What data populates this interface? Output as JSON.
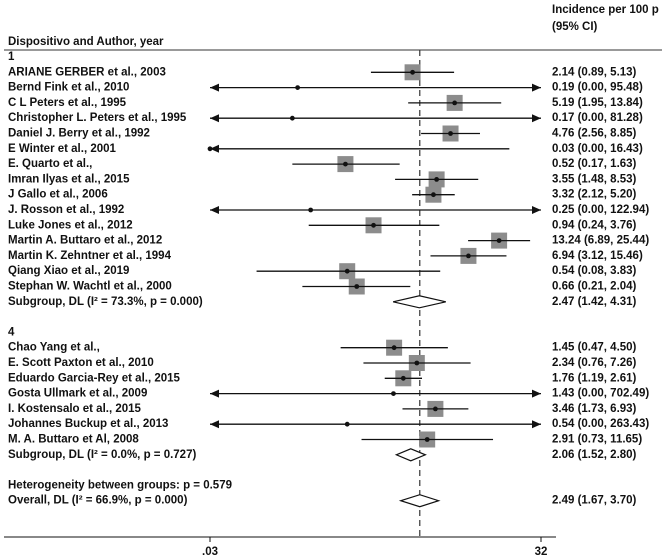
{
  "chart_data": {
    "type": "forest",
    "header_left": "Dispositivo and Author, year",
    "header_right": [
      "Incidence per 100 p",
      "(95% CI)"
    ],
    "log_scale": true,
    "xlim": [
      0.03,
      32
    ],
    "xticks": [
      {
        "value": 0.03,
        "label": ".03"
      },
      32
    ],
    "box_color": "#8c8c8c",
    "groups": [
      {
        "title": "1",
        "studies": [
          {
            "name": "ARIANE GERBER  et al., 2003",
            "estimate": 2.14,
            "lower": 0.89,
            "upper": 5.13,
            "label": "2.14 (0.89, 5.13)"
          },
          {
            "name": "Bernd Fink et al., 2010",
            "estimate": 0.19,
            "lower": 0.0,
            "upper": 95.48,
            "label": "0.19 (0.00, 95.48)"
          },
          {
            "name": "C L Peters et al., 1995",
            "estimate": 5.19,
            "lower": 1.95,
            "upper": 13.84,
            "label": "5.19 (1.95, 13.84)"
          },
          {
            "name": "Christopher L. Peters et al., 1995",
            "estimate": 0.17,
            "lower": 0.0,
            "upper": 81.28,
            "label": "0.17 (0.00, 81.28)"
          },
          {
            "name": "Daniel J. Berry et al., 1992",
            "estimate": 4.76,
            "lower": 2.56,
            "upper": 8.85,
            "label": "4.76 (2.56, 8.85)"
          },
          {
            "name": "E Winter et al., 2001",
            "estimate": 0.03,
            "lower": 0.0,
            "upper": 16.43,
            "label": "0.03 (0.00, 16.43)"
          },
          {
            "name": "E. Quarto et al.,",
            "estimate": 0.52,
            "lower": 0.17,
            "upper": 1.63,
            "label": "0.52 (0.17, 1.63)"
          },
          {
            "name": "Imran Ilyas et al., 2015",
            "estimate": 3.55,
            "lower": 1.48,
            "upper": 8.53,
            "label": "3.55 (1.48, 8.53)"
          },
          {
            "name": "J Gallo et al., 2006",
            "estimate": 3.32,
            "lower": 2.12,
            "upper": 5.2,
            "label": "3.32 (2.12, 5.20)"
          },
          {
            "name": "J. Rosson et al., 1992",
            "estimate": 0.25,
            "lower": 0.0,
            "upper": 122.94,
            "label": "0.25 (0.00, 122.94)"
          },
          {
            "name": "Luke Jones et al., 2012",
            "estimate": 0.94,
            "lower": 0.24,
            "upper": 3.76,
            "label": "0.94 (0.24, 3.76)"
          },
          {
            "name": "Martin A. Buttaro et al., 2012",
            "estimate": 13.24,
            "lower": 6.89,
            "upper": 25.44,
            "label": "13.24 (6.89, 25.44)"
          },
          {
            "name": "Martin K. Zehntner et al., 1994",
            "estimate": 6.94,
            "lower": 3.12,
            "upper": 15.46,
            "label": "6.94 (3.12, 15.46)"
          },
          {
            "name": "Qiang Xiao et al., 2019",
            "estimate": 0.54,
            "lower": 0.08,
            "upper": 3.83,
            "label": "0.54 (0.08, 3.83)"
          },
          {
            "name": "Stephan W. Wachtl et al., 2000",
            "estimate": 0.66,
            "lower": 0.21,
            "upper": 2.04,
            "label": "0.66 (0.21, 2.04)"
          }
        ],
        "subgroup": {
          "name": "Subgroup, DL (I² = 73.3%, p = 0.000)",
          "estimate": 2.47,
          "lower": 1.42,
          "upper": 4.31,
          "label": "2.47 (1.42, 4.31)"
        }
      },
      {
        "title": "4",
        "studies": [
          {
            "name": "Chao Yang et al.,",
            "estimate": 1.45,
            "lower": 0.47,
            "upper": 4.5,
            "label": "1.45 (0.47, 4.50)"
          },
          {
            "name": "E. Scott Paxton et al., 2010",
            "estimate": 2.34,
            "lower": 0.76,
            "upper": 7.26,
            "label": "2.34 (0.76, 7.26)"
          },
          {
            "name": "Eduardo Garcia-Rey et al., 2015",
            "estimate": 1.76,
            "lower": 1.19,
            "upper": 2.61,
            "label": "1.76 (1.19, 2.61)"
          },
          {
            "name": "Gosta Ullmark et al., 2009",
            "estimate": 1.43,
            "lower": 0.0,
            "upper": 702.49,
            "label": "1.43 (0.00, 702.49)"
          },
          {
            "name": "I. Kostensalo et al., 2015",
            "estimate": 3.46,
            "lower": 1.73,
            "upper": 6.93,
            "label": "3.46 (1.73, 6.93)"
          },
          {
            "name": "Johannes Buckup et al., 2013",
            "estimate": 0.54,
            "lower": 0.0,
            "upper": 263.43,
            "label": "0.54 (0.00, 263.43)"
          },
          {
            "name": "M. A. Buttaro et Al, 2008",
            "estimate": 2.91,
            "lower": 0.73,
            "upper": 11.65,
            "label": "2.91 (0.73, 11.65)"
          }
        ],
        "subgroup": {
          "name": "Subgroup, DL (I² = 0.0%, p = 0.727)",
          "estimate": 2.06,
          "lower": 1.52,
          "upper": 2.8,
          "label": "2.06 (1.52, 2.80)"
        }
      }
    ],
    "heterogeneity": "Heterogeneity between groups: p = 0.579",
    "overall": {
      "name": "Overall, DL (I² = 66.9%, p = 0.000)",
      "estimate": 2.49,
      "lower": 1.67,
      "upper": 3.7,
      "label": "2.49 (1.67, 3.70)"
    }
  }
}
